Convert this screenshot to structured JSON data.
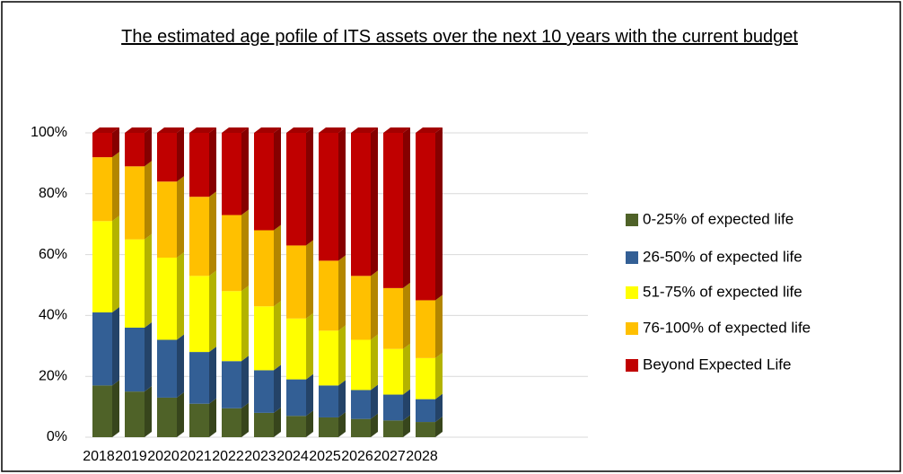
{
  "chart_data": {
    "type": "stacked_bar_3d",
    "title": "The estimated age pofile of ITS assets over the next 10 years with the current budget",
    "categories": [
      "2018",
      "2019",
      "2020",
      "2021",
      "2022",
      "2023",
      "2024",
      "2025",
      "2026",
      "2027",
      "2028"
    ],
    "series": [
      {
        "name": "0-25% of expected life",
        "color": "#4f6228",
        "values": [
          17,
          15,
          13,
          11,
          9.5,
          8,
          7,
          6.5,
          6,
          5.5,
          5
        ]
      },
      {
        "name": "26-50% of expected life",
        "color": "#335f95",
        "values": [
          24,
          21,
          19,
          17,
          15.5,
          14,
          12,
          10.5,
          9.5,
          8.5,
          7.5
        ]
      },
      {
        "name": "51-75% of expected life",
        "color": "#ffff00",
        "values": [
          30,
          29,
          27,
          25,
          23,
          21,
          20,
          18,
          16.5,
          15,
          13.5
        ]
      },
      {
        "name": "76-100% of expected life",
        "color": "#ffc000",
        "values": [
          21,
          24,
          25,
          26,
          25,
          25,
          24,
          23,
          21,
          20,
          19
        ]
      },
      {
        "name": "Beyond Expected Life",
        "color": "#c00000",
        "values": [
          8,
          11,
          16,
          21,
          27,
          32,
          37,
          42,
          47,
          51,
          55
        ]
      }
    ],
    "ylim": [
      0,
      100
    ],
    "yticks": [
      {
        "value": 0,
        "label": "0%"
      },
      {
        "value": 20,
        "label": "20%"
      },
      {
        "value": 40,
        "label": "40%"
      },
      {
        "value": 60,
        "label": "60%"
      },
      {
        "value": 80,
        "label": "80%"
      },
      {
        "value": 100,
        "label": "100%"
      }
    ],
    "grid": true,
    "legend": "right"
  }
}
